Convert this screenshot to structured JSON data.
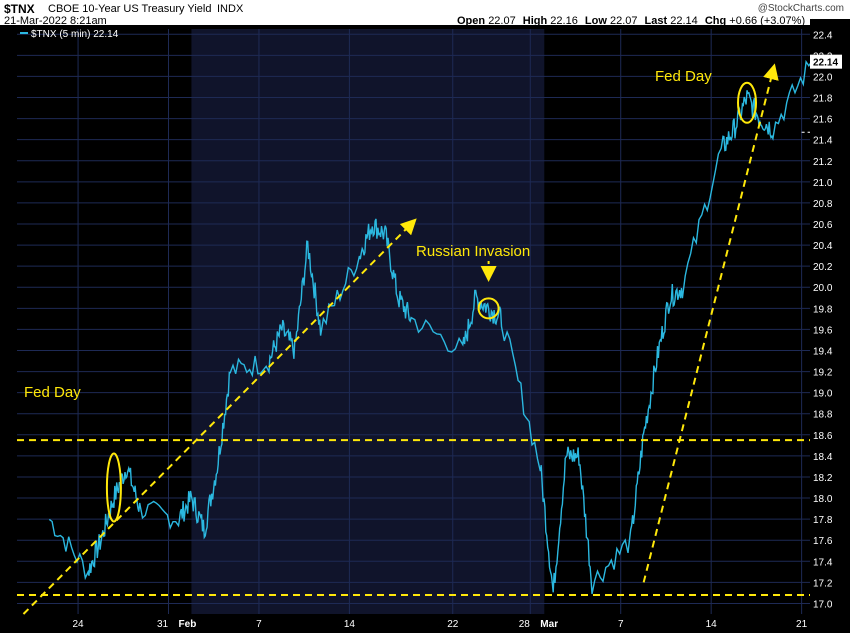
{
  "header": {
    "symbol": "$TNX",
    "name": "CBOE 10-Year US Treasury Yield",
    "exchange": "INDX",
    "date": "21-Mar-2022 8:21am",
    "open_label": "Open",
    "open_value": "22.07",
    "high_label": "High",
    "high_value": "22.16",
    "low_label": "Low",
    "low_value": "22.07",
    "last_label": "Last",
    "last_value": "22.14",
    "chg_label": "Chg",
    "chg_value": "+0.66 (+3.07%)",
    "watermark": "@StockCharts.com"
  },
  "legend": {
    "text": "$TNX (5 min) 22.14"
  },
  "last_price_tag": "22.14",
  "colors": {
    "background": "#000000",
    "shaded_band": "#10142b",
    "grid": "#1e2a55",
    "price_line": "#2bb8e0",
    "annotation": "#ffe80a",
    "axis_text": "#ffffff",
    "up_arrow": "#1aa31a"
  },
  "annotations": [
    {
      "kind": "label",
      "text": "Fed Day"
    },
    {
      "kind": "label",
      "text": "Russian Invasion"
    },
    {
      "kind": "label",
      "text": "Fed Day"
    }
  ],
  "chart_data": {
    "type": "line",
    "series": [
      {
        "name": "$TNX (5 min)",
        "x": [
          "2022-01-21",
          "2022-01-24",
          "2022-01-25",
          "2022-01-26",
          "2022-01-27",
          "2022-01-28",
          "2022-01-31",
          "2022-02-01",
          "2022-02-02",
          "2022-02-03",
          "2022-02-04",
          "2022-02-07",
          "2022-02-08",
          "2022-02-09",
          "2022-02-10",
          "2022-02-11",
          "2022-02-14",
          "2022-02-15",
          "2022-02-16",
          "2022-02-17",
          "2022-02-18",
          "2022-02-22",
          "2022-02-23",
          "2022-02-24",
          "2022-02-25",
          "2022-02-28",
          "2022-03-01",
          "2022-03-02",
          "2022-03-03",
          "2022-03-04",
          "2022-03-07",
          "2022-03-08",
          "2022-03-09",
          "2022-03-10",
          "2022-03-11",
          "2022-03-14",
          "2022-03-15",
          "2022-03-16",
          "2022-03-17",
          "2022-03-18",
          "2022-03-21"
        ],
        "values": [
          17.8,
          17.3,
          17.6,
          18.0,
          18.3,
          17.9,
          17.8,
          18.0,
          17.7,
          18.3,
          19.2,
          19.3,
          19.6,
          19.4,
          20.4,
          19.6,
          20.3,
          20.6,
          20.5,
          19.9,
          19.7,
          19.4,
          19.9,
          19.8,
          19.7,
          18.3,
          17.1,
          18.4,
          18.4,
          17.2,
          17.6,
          18.6,
          19.3,
          19.9,
          20.0,
          21.3,
          21.5,
          21.8,
          21.6,
          21.5,
          22.14
        ]
      }
    ],
    "x_tick_labels": [
      "24",
      "31",
      "Feb",
      "7",
      "14",
      "22",
      "28",
      "Mar",
      "7",
      "14",
      "21"
    ],
    "y_tick_labels": [
      "17.0",
      "17.2",
      "17.4",
      "17.6",
      "17.8",
      "18.0",
      "18.2",
      "18.4",
      "18.6",
      "18.8",
      "19.0",
      "19.2",
      "19.4",
      "19.6",
      "19.8",
      "20.0",
      "20.2",
      "20.4",
      "20.6",
      "20.8",
      "21.0",
      "21.2",
      "21.4",
      "21.6",
      "21.8",
      "22.0",
      "22.2",
      "22.4"
    ],
    "ylim": [
      16.9,
      22.45
    ],
    "y_axis_side": "right",
    "grid": true,
    "legend_position": "top-left",
    "horizontal_levels": [
      18.55,
      17.08
    ],
    "trend_lines": [
      {
        "from": [
          "2022-01-19",
          16.9
        ],
        "to": [
          "2022-02-18",
          20.6
        ]
      },
      {
        "from": [
          "2022-03-08",
          17.2
        ],
        "to": [
          "2022-03-18",
          22.05
        ]
      }
    ],
    "highlighted_points": [
      {
        "x": "2022-01-26",
        "y": 18.1,
        "label": "Fed Day"
      },
      {
        "x": "2022-02-24",
        "y": 19.8,
        "label": "Russian Invasion"
      },
      {
        "x": "2022-03-16",
        "y": 21.75,
        "label": "Fed Day"
      }
    ]
  }
}
